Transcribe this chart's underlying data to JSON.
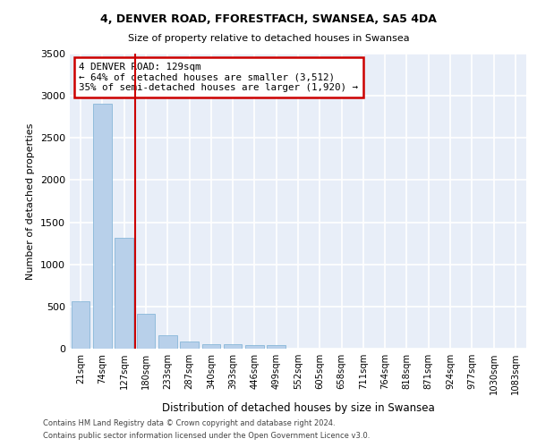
{
  "title_line1": "4, DENVER ROAD, FFORESTFACH, SWANSEA, SA5 4DA",
  "title_line2": "Size of property relative to detached houses in Swansea",
  "xlabel": "Distribution of detached houses by size in Swansea",
  "ylabel": "Number of detached properties",
  "bar_color": "#b8d0ea",
  "bar_edge_color": "#7aafd4",
  "categories": [
    "21sqm",
    "74sqm",
    "127sqm",
    "180sqm",
    "233sqm",
    "287sqm",
    "340sqm",
    "393sqm",
    "446sqm",
    "499sqm",
    "552sqm",
    "605sqm",
    "658sqm",
    "711sqm",
    "764sqm",
    "818sqm",
    "871sqm",
    "924sqm",
    "977sqm",
    "1030sqm",
    "1083sqm"
  ],
  "values": [
    560,
    2910,
    1320,
    415,
    155,
    80,
    55,
    50,
    45,
    40,
    0,
    0,
    0,
    0,
    0,
    0,
    0,
    0,
    0,
    0,
    0
  ],
  "ylim": [
    0,
    3500
  ],
  "yticks": [
    0,
    500,
    1000,
    1500,
    2000,
    2500,
    3000,
    3500
  ],
  "vline_index": 2,
  "annotation_text": "4 DENVER ROAD: 129sqm\n← 64% of detached houses are smaller (3,512)\n35% of semi-detached houses are larger (1,920) →",
  "annotation_box_color": "#ffffff",
  "annotation_box_edge_color": "#cc0000",
  "vline_color": "#cc0000",
  "footer_line1": "Contains HM Land Registry data © Crown copyright and database right 2024.",
  "footer_line2": "Contains public sector information licensed under the Open Government Licence v3.0.",
  "background_color": "#e8eef8",
  "grid_color": "#ffffff"
}
